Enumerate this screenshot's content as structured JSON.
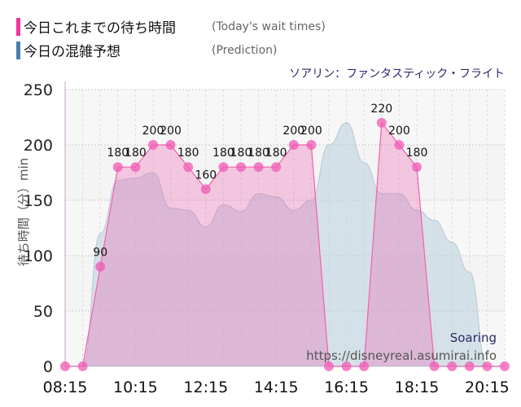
{
  "legend": [
    {
      "label": "今日これまでの待ち時間",
      "en": "(Today's wait times)",
      "color": "#f0359c"
    },
    {
      "label": "今日の混雑予想",
      "en": "(Prediction)",
      "color": "#4a7fb0"
    }
  ],
  "attraction": "ソアリン：ファンタスティック・フライト",
  "watermark": {
    "name": "Soaring",
    "url": "https://disneyreal.asumirai.info"
  },
  "chart_data": {
    "type": "area",
    "ylabel": "待ち時間（分）min",
    "ylim": [
      0,
      250
    ],
    "yticks": [
      0,
      50,
      100,
      150,
      200,
      250
    ],
    "xticks": [
      "08:15",
      "10:15",
      "12:15",
      "14:15",
      "16:15",
      "18:15",
      "20:15"
    ],
    "grid": true,
    "x": [
      "08:15",
      "08:45",
      "09:15",
      "09:45",
      "10:15",
      "10:45",
      "11:15",
      "11:45",
      "12:15",
      "12:45",
      "13:15",
      "13:45",
      "14:15",
      "14:45",
      "15:15",
      "15:45",
      "16:15",
      "16:45",
      "17:15",
      "17:45",
      "18:15",
      "18:45",
      "19:15",
      "19:45",
      "20:15",
      "20:45"
    ],
    "series": [
      {
        "name": "今日これまでの待ち時間",
        "color": "#f0359c",
        "values": [
          0,
          0,
          90,
          180,
          180,
          200,
          200,
          180,
          160,
          180,
          180,
          180,
          180,
          200,
          200,
          0,
          0,
          0,
          220,
          200,
          180,
          0,
          0,
          0,
          0,
          0
        ],
        "labels": [
          "",
          "",
          "90",
          "180",
          "180",
          "200",
          "200",
          "180",
          "160",
          "180",
          "180",
          "180",
          "180",
          "200",
          "200",
          "",
          "",
          "",
          "220",
          "200",
          "180",
          "",
          "",
          "",
          "",
          ""
        ]
      },
      {
        "name": "今日の混雑予想",
        "color": "#4a7fb0",
        "values": [
          0,
          0,
          120,
          168,
          170,
          175,
          143,
          141,
          126,
          146,
          140,
          156,
          153,
          141,
          150,
          200,
          220,
          184,
          156,
          156,
          141,
          132,
          112,
          85,
          0,
          0
        ]
      }
    ]
  }
}
